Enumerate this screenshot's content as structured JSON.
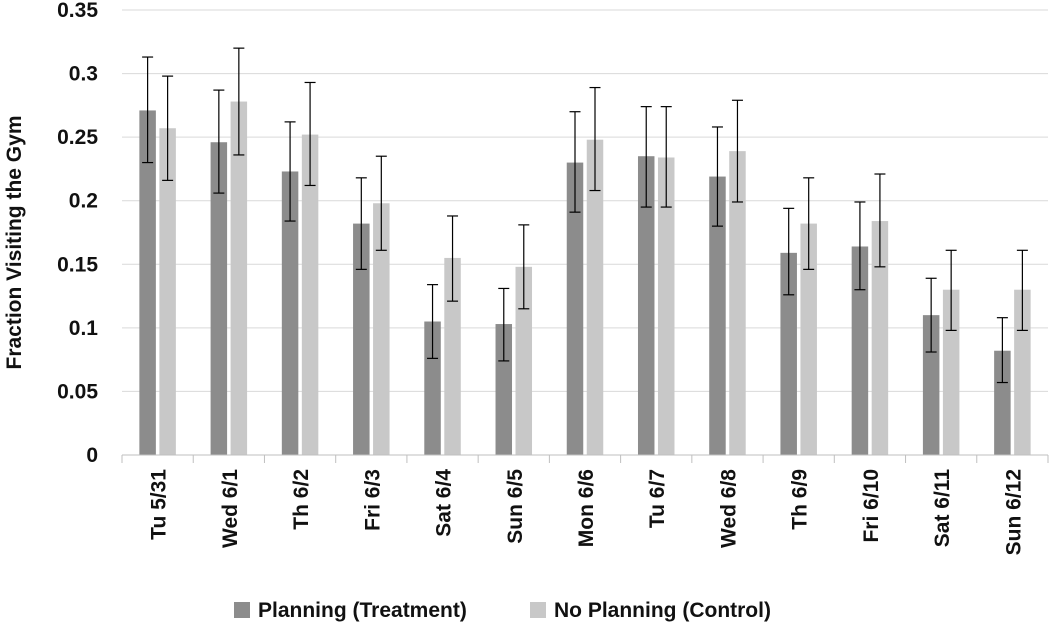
{
  "chart_data": {
    "type": "bar",
    "title": "",
    "xlabel": "",
    "ylabel": "Fraction Visiting the Gym",
    "ylim": [
      0,
      0.35
    ],
    "yticks": [
      "0",
      "0.05",
      "0.1",
      "0.15",
      "0.2",
      "0.25",
      "0.3",
      "0.35"
    ],
    "yticks_values": [
      0,
      0.05,
      0.1,
      0.15,
      0.2,
      0.25,
      0.3,
      0.35
    ],
    "grid": true,
    "legend_position": "bottom",
    "categories": [
      "Tu 5/31",
      "Wed 6/1",
      "Th 6/2",
      "Fri 6/3",
      "Sat 6/4",
      "Sun 6/5",
      "Mon 6/6",
      "Tu 6/7",
      "Wed 6/8",
      "Th 6/9",
      "Fri 6/10",
      "Sat 6/11",
      "Sun 6/12"
    ],
    "series": [
      {
        "name": "Planning (Treatment)",
        "color": "#8c8c8c",
        "values": [
          0.271,
          0.246,
          0.223,
          0.182,
          0.105,
          0.103,
          0.23,
          0.235,
          0.219,
          0.159,
          0.164,
          0.11,
          0.082
        ],
        "error_low": [
          0.23,
          0.206,
          0.184,
          0.146,
          0.076,
          0.074,
          0.191,
          0.195,
          0.18,
          0.126,
          0.13,
          0.081,
          0.057
        ],
        "error_high": [
          0.313,
          0.287,
          0.262,
          0.218,
          0.134,
          0.131,
          0.27,
          0.274,
          0.258,
          0.194,
          0.199,
          0.139,
          0.108
        ]
      },
      {
        "name": "No Planning (Control)",
        "color": "#c8c8c8",
        "values": [
          0.257,
          0.278,
          0.252,
          0.198,
          0.155,
          0.148,
          0.248,
          0.234,
          0.239,
          0.182,
          0.184,
          0.13,
          0.13
        ],
        "error_low": [
          0.216,
          0.236,
          0.212,
          0.161,
          0.121,
          0.115,
          0.208,
          0.195,
          0.199,
          0.146,
          0.148,
          0.098,
          0.098
        ],
        "error_high": [
          0.298,
          0.32,
          0.293,
          0.235,
          0.188,
          0.181,
          0.289,
          0.274,
          0.279,
          0.218,
          0.221,
          0.161,
          0.161
        ]
      }
    ]
  }
}
